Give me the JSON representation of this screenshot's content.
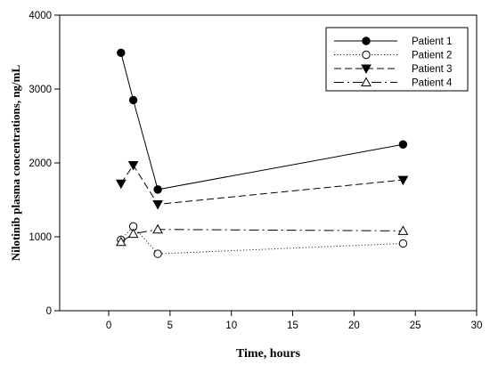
{
  "chart_data": {
    "type": "line",
    "xlabel": "Time, hours",
    "ylabel": "Nilotinib plasma concentrations, ng/mL",
    "xlim": [
      -4,
      30
    ],
    "ylim": [
      0,
      4000
    ],
    "xticks": [
      0,
      5,
      10,
      15,
      20,
      25,
      30
    ],
    "yticks": [
      0,
      1000,
      2000,
      3000,
      4000
    ],
    "grid": false,
    "legend_position": "top-right",
    "series": [
      {
        "name": "Patient 1",
        "marker": "filled-circle",
        "line_style": "solid",
        "x": [
          1,
          2,
          4,
          24
        ],
        "y": [
          3490,
          2850,
          1640,
          2250
        ]
      },
      {
        "name": "Patient 2",
        "marker": "open-circle",
        "line_style": "dotted",
        "x": [
          1,
          2,
          4,
          24
        ],
        "y": [
          960,
          1140,
          770,
          910
        ]
      },
      {
        "name": "Patient 3",
        "marker": "filled-triangle-down",
        "line_style": "dashed",
        "x": [
          1,
          2,
          4,
          24
        ],
        "y": [
          1720,
          1970,
          1440,
          1770
        ]
      },
      {
        "name": "Patient 4",
        "marker": "open-triangle-up",
        "line_style": "dash-dot",
        "x": [
          1,
          2,
          4,
          24
        ],
        "y": [
          930,
          1040,
          1100,
          1080
        ]
      }
    ]
  }
}
